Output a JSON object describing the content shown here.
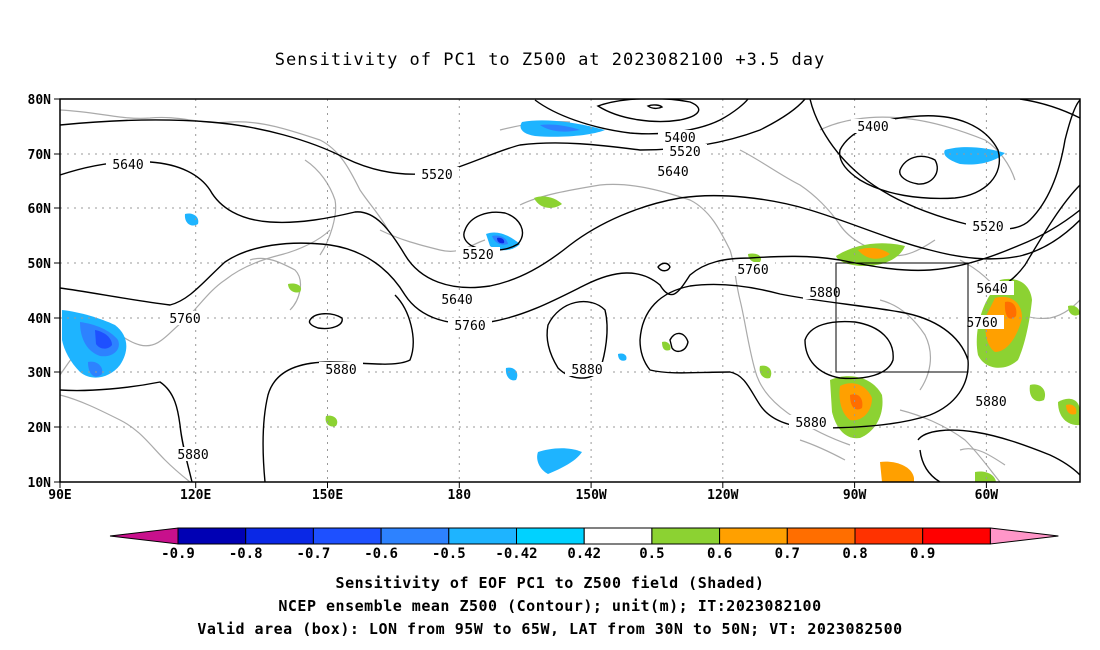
{
  "title": "Sensitivity of PC1 to Z500 at 2023082100 +3.5 day",
  "lon_ticks": [
    "90E",
    "120E",
    "150E",
    "180",
    "150W",
    "120W",
    "90W",
    "60W"
  ],
  "lat_ticks": [
    "80N",
    "70N",
    "60N",
    "50N",
    "40N",
    "30N",
    "20N",
    "10N"
  ],
  "contour_labels": [
    "5400",
    "5400",
    "5520",
    "5520",
    "5520",
    "5520",
    "5640",
    "5640",
    "5640",
    "5640",
    "5760",
    "5760",
    "5760",
    "5760",
    "5880",
    "5880",
    "5880",
    "5880",
    "5880",
    "5880"
  ],
  "colorbar": {
    "ticks": [
      "-0.9",
      "-0.8",
      "-0.7",
      "-0.6",
      "-0.5",
      "-0.42",
      "0.42",
      "0.5",
      "0.6",
      "0.7",
      "0.8",
      "0.9"
    ],
    "colors": [
      "#c8108c",
      "#0000b4",
      "#0a28e6",
      "#1e50ff",
      "#2d82ff",
      "#1eb4ff",
      "#00d2ff",
      "#ffffff",
      "#8cd232",
      "#ffa000",
      "#ff6e00",
      "#ff3200",
      "#ff0000",
      "#ff96c8"
    ]
  },
  "valid_box": {
    "lon": [
      "95W",
      "65W"
    ],
    "lat": [
      "30N",
      "50N"
    ]
  },
  "captions": [
    "Sensitivity of EOF PC1 to Z500 field (Shaded)",
    "NCEP ensemble mean Z500 (Contour); unit(m); IT:2023082100",
    "Valid area (box): LON from 95W to 65W, LAT from 30N to 50N; VT: 2023082500"
  ]
}
